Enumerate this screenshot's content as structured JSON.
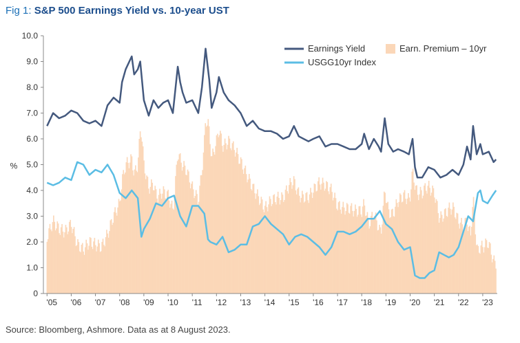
{
  "title": {
    "fig": "Fig 1:",
    "main": "S&P 500 Earnings Yield vs. 10-year UST"
  },
  "source": "Source: Bloomberg, Ashmore. Data as at 8 August 2023.",
  "colors": {
    "earnings_yield": "#44597e",
    "usgg10": "#5bbde4",
    "premium": "#fbd7b8"
  },
  "chart_data": {
    "type": "line",
    "ylabel": "%",
    "ylim": [
      0,
      10
    ],
    "xlim": [
      2004.85,
      2023.6
    ],
    "yticks": [
      "0",
      "1.0",
      "2.0",
      "3.0",
      "4.0",
      "5.0",
      "6.0",
      "7.0",
      "8.0",
      "9.0",
      "10.0"
    ],
    "xticks": [
      "'05",
      "'06",
      "'07",
      "'08",
      "'09",
      "'10",
      "'11",
      "'12",
      "'13",
      "'14",
      "'15",
      "'16",
      "'17",
      "'18",
      "'19",
      "'20",
      "'21",
      "'22",
      "'23"
    ],
    "legend": [
      "Earnings Yield",
      "Earn. Premium – 10yr",
      "USGG10yr Index"
    ],
    "series": [
      {
        "name": "Earnings Yield",
        "kind": "line",
        "x": [
          2005.0,
          2005.25,
          2005.5,
          2005.75,
          2006.0,
          2006.25,
          2006.5,
          2006.75,
          2007.0,
          2007.25,
          2007.5,
          2007.75,
          2008.0,
          2008.1,
          2008.25,
          2008.5,
          2008.6,
          2008.75,
          2008.85,
          2009.0,
          2009.2,
          2009.4,
          2009.6,
          2009.8,
          2010.0,
          2010.2,
          2010.4,
          2010.5,
          2010.6,
          2010.75,
          2011.0,
          2011.25,
          2011.4,
          2011.55,
          2011.7,
          2011.8,
          2012.0,
          2012.1,
          2012.3,
          2012.5,
          2012.75,
          2013.0,
          2013.25,
          2013.5,
          2013.75,
          2014.0,
          2014.25,
          2014.5,
          2014.75,
          2015.0,
          2015.2,
          2015.4,
          2015.6,
          2015.8,
          2016.0,
          2016.25,
          2016.5,
          2016.75,
          2017.0,
          2017.25,
          2017.5,
          2017.75,
          2018.0,
          2018.1,
          2018.3,
          2018.5,
          2018.7,
          2018.8,
          2018.95,
          2019.1,
          2019.3,
          2019.5,
          2019.75,
          2019.95,
          2020.1,
          2020.2,
          2020.3,
          2020.5,
          2020.75,
          2021.0,
          2021.25,
          2021.5,
          2021.75,
          2022.0,
          2022.2,
          2022.35,
          2022.5,
          2022.6,
          2022.75,
          2022.9,
          2023.0,
          2023.25,
          2023.45,
          2023.55
        ],
        "values": [
          6.5,
          7.0,
          6.8,
          6.9,
          7.1,
          7.0,
          6.7,
          6.6,
          6.7,
          6.5,
          7.3,
          7.6,
          7.4,
          8.2,
          8.7,
          9.2,
          8.5,
          8.7,
          9.0,
          7.5,
          6.9,
          7.5,
          7.2,
          7.4,
          7.5,
          7.0,
          8.8,
          8.2,
          7.8,
          7.4,
          7.5,
          7.0,
          8.0,
          9.5,
          8.3,
          7.2,
          7.8,
          8.4,
          7.8,
          7.5,
          7.3,
          7.0,
          6.5,
          6.7,
          6.4,
          6.3,
          6.3,
          6.2,
          6.0,
          6.1,
          6.5,
          6.1,
          6.0,
          5.9,
          6.0,
          6.1,
          5.7,
          5.8,
          5.8,
          5.7,
          5.6,
          5.6,
          5.8,
          6.2,
          5.6,
          6.0,
          5.7,
          5.5,
          6.8,
          5.8,
          5.5,
          5.6,
          5.5,
          5.4,
          6.0,
          4.9,
          4.5,
          4.5,
          4.9,
          4.8,
          4.5,
          4.6,
          4.8,
          4.6,
          5.0,
          5.7,
          5.2,
          6.5,
          5.4,
          5.8,
          5.4,
          5.5,
          5.1,
          5.2
        ]
      },
      {
        "name": "USGG10yr Index",
        "kind": "line",
        "x": [
          2005.0,
          2005.25,
          2005.5,
          2005.75,
          2006.0,
          2006.25,
          2006.5,
          2006.75,
          2007.0,
          2007.25,
          2007.5,
          2007.75,
          2008.0,
          2008.25,
          2008.5,
          2008.75,
          2008.9,
          2009.0,
          2009.25,
          2009.5,
          2009.75,
          2010.0,
          2010.25,
          2010.5,
          2010.75,
          2011.0,
          2011.25,
          2011.5,
          2011.65,
          2011.75,
          2012.0,
          2012.25,
          2012.5,
          2012.75,
          2013.0,
          2013.25,
          2013.5,
          2013.75,
          2014.0,
          2014.25,
          2014.5,
          2014.75,
          2015.0,
          2015.25,
          2015.5,
          2015.75,
          2016.0,
          2016.25,
          2016.5,
          2016.75,
          2017.0,
          2017.25,
          2017.5,
          2017.75,
          2018.0,
          2018.25,
          2018.5,
          2018.75,
          2019.0,
          2019.25,
          2019.5,
          2019.75,
          2020.0,
          2020.2,
          2020.4,
          2020.6,
          2020.8,
          2021.0,
          2021.2,
          2021.4,
          2021.6,
          2021.8,
          2022.0,
          2022.2,
          2022.4,
          2022.6,
          2022.8,
          2022.9,
          2023.0,
          2023.2,
          2023.4,
          2023.55
        ],
        "values": [
          4.3,
          4.2,
          4.3,
          4.5,
          4.4,
          5.1,
          5.0,
          4.6,
          4.8,
          4.7,
          5.0,
          4.6,
          3.9,
          3.7,
          4.0,
          3.7,
          2.2,
          2.5,
          2.9,
          3.5,
          3.4,
          3.7,
          3.8,
          3.0,
          2.6,
          3.4,
          3.4,
          3.1,
          2.1,
          2.0,
          1.9,
          2.2,
          1.6,
          1.7,
          1.9,
          1.9,
          2.6,
          2.7,
          3.0,
          2.7,
          2.5,
          2.3,
          1.9,
          2.2,
          2.3,
          2.2,
          2.0,
          1.8,
          1.5,
          1.8,
          2.4,
          2.4,
          2.3,
          2.4,
          2.6,
          2.9,
          2.9,
          3.2,
          2.7,
          2.5,
          2.0,
          1.7,
          1.8,
          0.7,
          0.6,
          0.6,
          0.8,
          0.9,
          1.6,
          1.5,
          1.4,
          1.5,
          1.8,
          2.4,
          3.0,
          2.8,
          3.9,
          4.0,
          3.6,
          3.5,
          3.8,
          4.0
        ]
      },
      {
        "name": "Earn. Premium – 10yr",
        "kind": "bar",
        "derived_from": "Earnings Yield minus USGG10yr Index"
      }
    ]
  }
}
